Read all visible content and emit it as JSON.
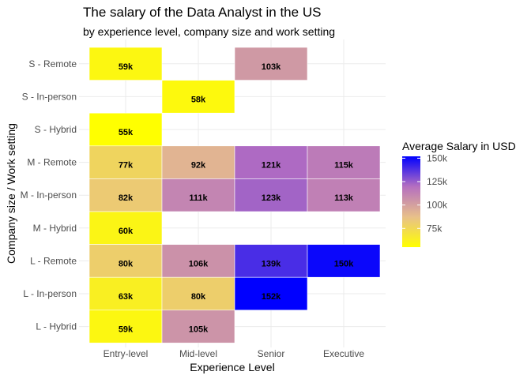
{
  "chart_data": {
    "type": "heatmap",
    "title": "The salary of the Data Analyst in the US",
    "subtitle": "by experience level, company size and work setting",
    "xlabel": "Experience Level",
    "ylabel": "Company size / Work setting",
    "x_categories": [
      "Entry-level",
      "Mid-level",
      "Senior",
      "Executive"
    ],
    "y_categories": [
      "S - Remote",
      "S - In-person",
      "S - Hybrid",
      "M - Remote",
      "M - In-person",
      "M - Hybrid",
      "L - Remote",
      "L - In-person",
      "L - Hybrid"
    ],
    "cells": [
      {
        "y": "S - Remote",
        "x": "Entry-level",
        "value": 59,
        "label": "59k"
      },
      {
        "y": "S - Remote",
        "x": "Senior",
        "value": 103,
        "label": "103k"
      },
      {
        "y": "S - In-person",
        "x": "Mid-level",
        "value": 58,
        "label": "58k"
      },
      {
        "y": "S - Hybrid",
        "x": "Entry-level",
        "value": 55,
        "label": "55k"
      },
      {
        "y": "M - Remote",
        "x": "Entry-level",
        "value": 77,
        "label": "77k"
      },
      {
        "y": "M - Remote",
        "x": "Mid-level",
        "value": 92,
        "label": "92k"
      },
      {
        "y": "M - Remote",
        "x": "Senior",
        "value": 121,
        "label": "121k"
      },
      {
        "y": "M - Remote",
        "x": "Executive",
        "value": 115,
        "label": "115k"
      },
      {
        "y": "M - In-person",
        "x": "Entry-level",
        "value": 82,
        "label": "82k"
      },
      {
        "y": "M - In-person",
        "x": "Mid-level",
        "value": 111,
        "label": "111k"
      },
      {
        "y": "M - In-person",
        "x": "Senior",
        "value": 123,
        "label": "123k"
      },
      {
        "y": "M - In-person",
        "x": "Executive",
        "value": 113,
        "label": "113k"
      },
      {
        "y": "M - Hybrid",
        "x": "Entry-level",
        "value": 60,
        "label": "60k"
      },
      {
        "y": "L - Remote",
        "x": "Entry-level",
        "value": 80,
        "label": "80k"
      },
      {
        "y": "L - Remote",
        "x": "Mid-level",
        "value": 106,
        "label": "106k"
      },
      {
        "y": "L - Remote",
        "x": "Senior",
        "value": 139,
        "label": "139k"
      },
      {
        "y": "L - Remote",
        "x": "Executive",
        "value": 150,
        "label": "150k"
      },
      {
        "y": "L - In-person",
        "x": "Entry-level",
        "value": 63,
        "label": "63k"
      },
      {
        "y": "L - In-person",
        "x": "Mid-level",
        "value": 80,
        "label": "80k"
      },
      {
        "y": "L - In-person",
        "x": "Senior",
        "value": 152,
        "label": "152k"
      },
      {
        "y": "L - Hybrid",
        "x": "Entry-level",
        "value": 59,
        "label": "59k"
      },
      {
        "y": "L - Hybrid",
        "x": "Mid-level",
        "value": 105,
        "label": "105k"
      }
    ],
    "legend": {
      "title": "Average Salary in USD",
      "range": [
        55,
        152
      ],
      "ticks": [
        75,
        100,
        125,
        150
      ],
      "tick_labels": [
        "75k",
        "100k",
        "125k",
        "150k"
      ],
      "colors": [
        "#ffff00",
        "#e8c08a",
        "#b56fc0",
        "#0000ff"
      ],
      "placement": "right"
    },
    "grid": true
  }
}
